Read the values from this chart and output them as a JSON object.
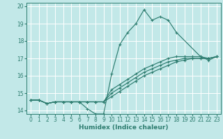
{
  "xlabel": "Humidex (Indice chaleur)",
  "xlim": [
    -0.5,
    23.5
  ],
  "ylim": [
    13.8,
    20.2
  ],
  "yticks": [
    14,
    15,
    16,
    17,
    18,
    19,
    20
  ],
  "xticks": [
    0,
    1,
    2,
    3,
    4,
    5,
    6,
    7,
    8,
    9,
    10,
    11,
    12,
    13,
    14,
    15,
    16,
    17,
    18,
    19,
    20,
    21,
    22,
    23
  ],
  "bg_color": "#c2e8e8",
  "grid_color": "#ffffff",
  "line_color": "#2e7d70",
  "lines": [
    {
      "x": [
        0,
        1,
        2,
        3,
        4,
        5,
        6,
        7,
        8,
        9,
        10,
        11,
        12,
        13,
        14,
        15,
        16,
        17,
        18,
        21,
        22,
        23
      ],
      "y": [
        14.6,
        14.6,
        14.4,
        14.5,
        14.5,
        14.5,
        14.5,
        14.1,
        13.8,
        13.8,
        16.1,
        17.8,
        18.5,
        19.0,
        19.8,
        19.2,
        19.4,
        19.2,
        18.5,
        17.1,
        16.9,
        17.1
      ]
    },
    {
      "x": [
        0,
        1,
        2,
        3,
        4,
        5,
        6,
        7,
        8,
        9,
        10,
        11,
        12,
        13,
        14,
        15,
        16,
        17,
        18,
        19,
        20,
        21,
        22,
        23
      ],
      "y": [
        14.6,
        14.6,
        14.4,
        14.5,
        14.5,
        14.5,
        14.5,
        14.5,
        14.5,
        14.5,
        15.2,
        15.5,
        15.8,
        16.1,
        16.4,
        16.6,
        16.8,
        17.0,
        17.1,
        17.1,
        17.1,
        17.1,
        17.0,
        17.1
      ]
    },
    {
      "x": [
        0,
        1,
        2,
        3,
        4,
        5,
        6,
        7,
        8,
        9,
        10,
        11,
        12,
        13,
        14,
        15,
        16,
        17,
        18,
        19,
        20,
        21,
        22,
        23
      ],
      "y": [
        14.6,
        14.6,
        14.4,
        14.5,
        14.5,
        14.5,
        14.5,
        14.5,
        14.5,
        14.5,
        15.0,
        15.3,
        15.6,
        15.9,
        16.2,
        16.4,
        16.6,
        16.8,
        16.9,
        17.0,
        17.0,
        17.0,
        17.0,
        17.1
      ]
    },
    {
      "x": [
        0,
        1,
        2,
        3,
        4,
        5,
        6,
        7,
        8,
        9,
        10,
        11,
        12,
        13,
        14,
        15,
        16,
        17,
        18,
        19,
        20,
        21,
        22,
        23
      ],
      "y": [
        14.6,
        14.6,
        14.4,
        14.5,
        14.5,
        14.5,
        14.5,
        14.5,
        14.5,
        14.5,
        14.8,
        15.1,
        15.4,
        15.7,
        16.0,
        16.2,
        16.4,
        16.6,
        16.8,
        16.9,
        17.0,
        17.0,
        17.0,
        17.1
      ]
    }
  ]
}
